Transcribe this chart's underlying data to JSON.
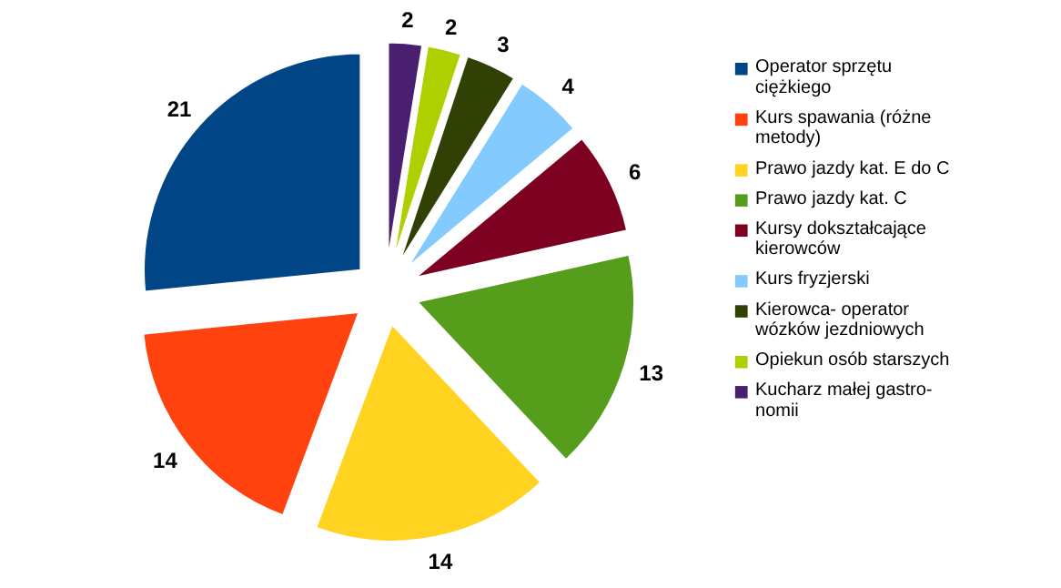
{
  "chart_data": {
    "type": "pie",
    "categories": [
      "Operator sprzętu ciężkiego",
      "Kurs spawania (różne metody)",
      "Prawo jazdy kat. E do C",
      "Prawo jazdy kat. C",
      "Kursy dokształcające kierowców",
      "Kurs fryzjerski",
      "Kierowca- operator wózków jezdniowych",
      "Opiekun osób starszych",
      "Kucharz małej gastro-nomii"
    ],
    "values": [
      21,
      14,
      14,
      13,
      6,
      4,
      3,
      2,
      2
    ],
    "colors": [
      "#004586",
      "#ff420e",
      "#ffd320",
      "#579d1c",
      "#7e0021",
      "#83caff",
      "#314004",
      "#aecf00",
      "#4b1f6f"
    ],
    "data_labels": true,
    "legend": "right"
  }
}
